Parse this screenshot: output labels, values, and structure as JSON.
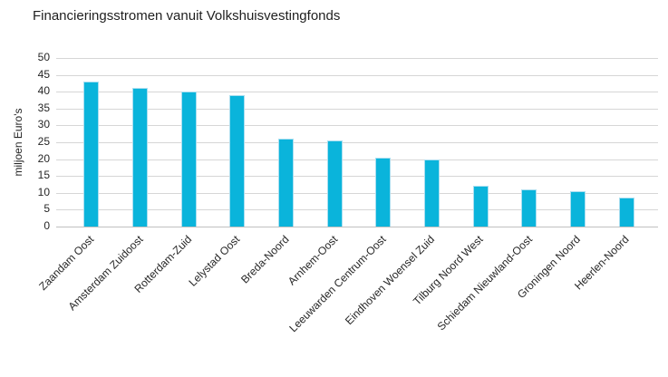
{
  "chart_data": {
    "type": "bar",
    "title": "Financieringsstromen vanuit Volkshuisvestingfonds",
    "xlabel": "",
    "ylabel": "miljoen Euro's",
    "ylim": [
      0,
      50
    ],
    "yticks": [
      0,
      5,
      10,
      15,
      20,
      25,
      30,
      35,
      40,
      45,
      50
    ],
    "grid": true,
    "legend": "none",
    "categories": [
      "Zaandam Oost",
      "Amsterdam Zuidoost",
      "Rotterdam-Zuid",
      "Lelystad Oost",
      "Breda-Noord",
      "Arnhem-Oost",
      "Leeuwarden Centrum-Oost",
      "Eindhoven Woensel Zuid",
      "Tilburg Noord West",
      "Schiedam Nieuwland-Oost",
      "Groningen Noord",
      "Heerlen-Noord"
    ],
    "values": [
      43,
      41,
      40,
      39,
      26,
      25.5,
      20.5,
      20,
      12,
      11,
      10.5,
      8.5
    ],
    "colors": {
      "bar": "#0ab4db",
      "bar_border": "#a9def0",
      "gridline": "#d6d6d6",
      "axis_line": "#c0c0c0",
      "text": "#262626"
    }
  }
}
